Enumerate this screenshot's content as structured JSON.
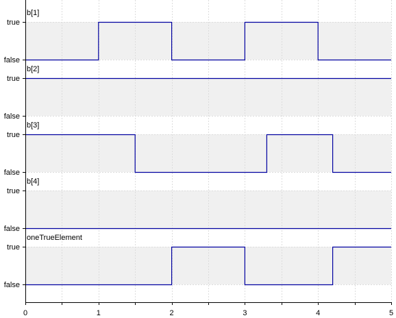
{
  "chart_data": {
    "type": "line",
    "step": true,
    "xlim": [
      0,
      5
    ],
    "x_ticks": [
      "0",
      "1",
      "2",
      "3",
      "4",
      "5"
    ],
    "y_tick_labels": {
      "true": "true",
      "false": "false"
    },
    "grid": true,
    "colors": {
      "line": "#0000a0",
      "band": "#f0f0f0",
      "grid": "#dcdcdc",
      "axis": "#000000"
    },
    "series": [
      {
        "name": "b[1]",
        "x": [
          0,
          1,
          1,
          2,
          2,
          3,
          3,
          4,
          4,
          5
        ],
        "values": [
          0,
          0,
          1,
          1,
          0,
          0,
          1,
          1,
          0,
          0
        ]
      },
      {
        "name": "b[2]",
        "x": [
          0,
          5
        ],
        "values": [
          1,
          1
        ]
      },
      {
        "name": "b[3]",
        "x": [
          0,
          1.5,
          1.5,
          3.3,
          3.3,
          4.2,
          4.2,
          5
        ],
        "values": [
          1,
          1,
          0,
          0,
          1,
          1,
          0,
          0
        ]
      },
      {
        "name": "b[4]",
        "x": [
          0,
          5
        ],
        "values": [
          0,
          0
        ]
      },
      {
        "name": "oneTrueElement",
        "x": [
          0,
          2,
          2,
          3,
          3,
          4.2,
          4.2,
          5
        ],
        "values": [
          0,
          0,
          1,
          1,
          0,
          0,
          1,
          1
        ]
      }
    ]
  }
}
